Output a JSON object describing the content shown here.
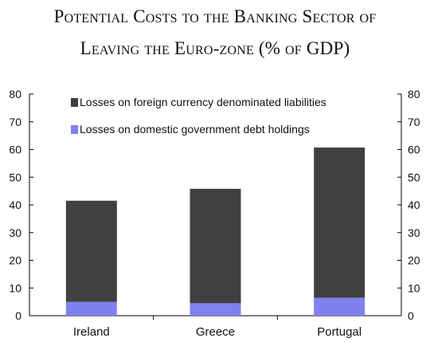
{
  "title": {
    "line1": "Potential Costs to the Banking Sector of",
    "line2": "Leaving the Euro-zone (% of GDP)"
  },
  "chart_data": {
    "type": "bar",
    "stacked": true,
    "categories": [
      "Ireland",
      "Greece",
      "Portugal"
    ],
    "series": [
      {
        "name": "Losses on domestic government debt holdings",
        "color": "#8080f0",
        "values": [
          5,
          4.5,
          6.5
        ]
      },
      {
        "name": "Losses on foreign currency denominated liabilities",
        "color": "#404040",
        "values": [
          36.5,
          41.3,
          54.2
        ]
      }
    ],
    "totals": [
      41.5,
      45.8,
      60.7
    ],
    "ylim": [
      0,
      80
    ],
    "yticks": [
      0,
      10,
      20,
      30,
      40,
      50,
      60,
      70,
      80
    ],
    "dual_y_axis": true,
    "grid": false,
    "legend_position": "top-right",
    "xlabel": "",
    "ylabel": ""
  }
}
